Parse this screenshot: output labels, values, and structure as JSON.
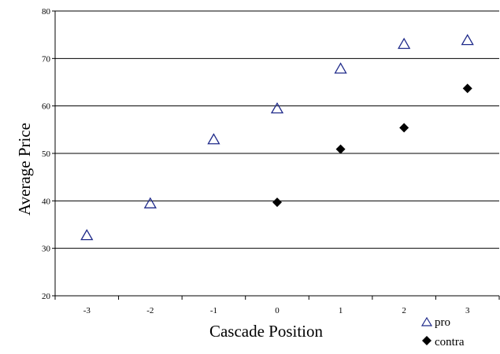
{
  "chart_data": {
    "type": "scatter",
    "title": "",
    "xlabel": "Cascade Position",
    "ylabel": "Average Price",
    "xlim": [
      -3.5,
      3.5
    ],
    "ylim": [
      20,
      80
    ],
    "x_ticks": [
      -3,
      -2,
      -1,
      0,
      1,
      2,
      3
    ],
    "y_ticks": [
      20,
      30,
      40,
      50,
      60,
      70,
      80
    ],
    "grid": "horizontal",
    "legend_position": "bottom-right",
    "series": [
      {
        "name": "pro",
        "marker": "open-triangle",
        "color": "#1f2a8a",
        "points": [
          {
            "x": -3,
            "y": 32.7
          },
          {
            "x": -2,
            "y": 39.4
          },
          {
            "x": -1,
            "y": 52.9
          },
          {
            "x": 0,
            "y": 59.4
          },
          {
            "x": 1,
            "y": 67.8
          },
          {
            "x": 2,
            "y": 73.0
          },
          {
            "x": 3,
            "y": 73.8
          }
        ]
      },
      {
        "name": "contra",
        "marker": "filled-diamond",
        "color": "#000000",
        "points": [
          {
            "x": 0,
            "y": 39.7
          },
          {
            "x": 1,
            "y": 50.9
          },
          {
            "x": 2,
            "y": 55.4
          },
          {
            "x": 3,
            "y": 63.7
          }
        ]
      }
    ]
  }
}
